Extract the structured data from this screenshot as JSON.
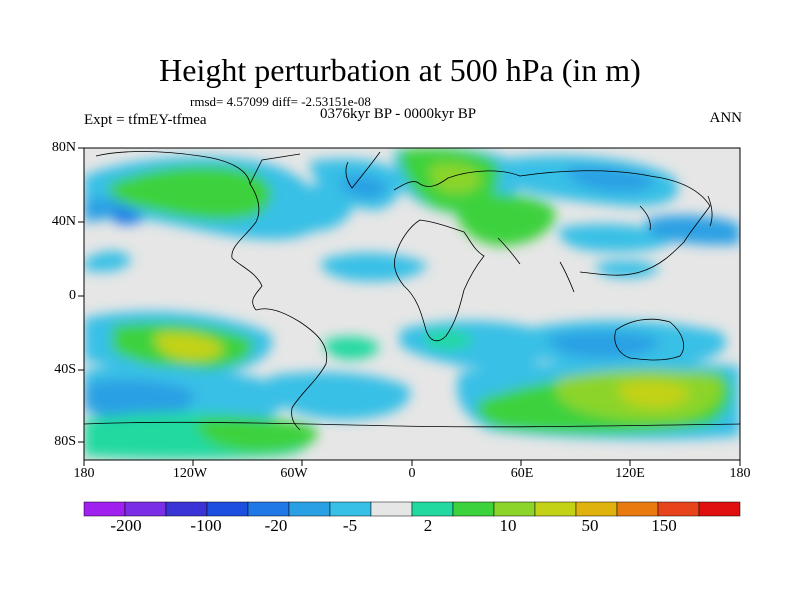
{
  "title": "Height perturbation at 500 hPa (in m)",
  "stats": "rmsd= 4.57099 diff= -2.53151e-08",
  "experiment": "Expt = tfmEY-tfmea",
  "period": "0376kyr BP - 0000kyr BP",
  "season": "ANN",
  "lat_labels": [
    "80N",
    "40N",
    "0",
    "40S",
    "80S"
  ],
  "lon_labels": [
    "180",
    "120W",
    "60W",
    "0",
    "60E",
    "120E",
    "180"
  ],
  "colorbar": {
    "colors": [
      "#a020f0",
      "#7a2ee6",
      "#3a33d6",
      "#1c4fe0",
      "#1f78e6",
      "#2aa0e4",
      "#38c0e6",
      "#e6e6e6",
      "#22d9a0",
      "#3cd23c",
      "#8cd42a",
      "#c4d216",
      "#e0b20e",
      "#e87a10",
      "#e8441c",
      "#e01010"
    ],
    "labels": [
      "-200",
      "-100",
      "-20",
      "-5",
      "2",
      "10",
      "50",
      "150"
    ]
  },
  "map_colors": {
    "neutral": "#e6e6e6",
    "lightblue": "#38c0e6",
    "midblue": "#2aa0e4",
    "darkblue": "#1f78e6",
    "teal": "#22d9a0",
    "green": "#3cd23c",
    "yellowgreen": "#8cd42a",
    "olive": "#c4d216",
    "coast": "#000000"
  }
}
